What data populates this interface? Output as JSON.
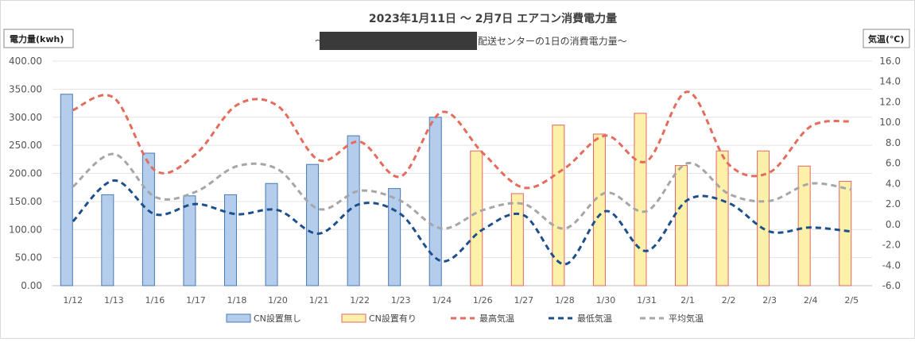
{
  "chart_data": {
    "type": "bar",
    "title": "2023年1月11日 ～ 2月7日 エアコン消費電力量",
    "subtitle_prefix": "～",
    "subtitle_suffix": "配送センターの1日の消費電力量～",
    "ylabel": "電力量(kwh)",
    "y2label": "気温(℃)",
    "ylim": [
      0,
      400
    ],
    "y2lim": [
      -6,
      16
    ],
    "y_ticks": [
      "0.00",
      "50.00",
      "100.00",
      "150.00",
      "200.00",
      "250.00",
      "300.00",
      "350.00",
      "400.00"
    ],
    "y2_ticks": [
      "-6.0",
      "-4.0",
      "-2.0",
      "0.0",
      "2.0",
      "4.0",
      "6.0",
      "8.0",
      "10.0",
      "12.0",
      "14.0",
      "16.0"
    ],
    "grid": true,
    "legend_position": "bottom",
    "categories": [
      "1/12",
      "1/13",
      "1/16",
      "1/17",
      "1/18",
      "1/20",
      "1/21",
      "1/22",
      "1/23",
      "1/24",
      "1/26",
      "1/27",
      "1/28",
      "1/30",
      "1/31",
      "2/1",
      "2/2",
      "2/3",
      "2/4",
      "2/5"
    ],
    "series": [
      {
        "name": "CN設置無し",
        "type": "bar",
        "axis": "left",
        "color": "#b4cdec",
        "stroke": "#4a78b4",
        "values": [
          341,
          162,
          236,
          160,
          162,
          182,
          216,
          267,
          173,
          300,
          null,
          null,
          null,
          null,
          null,
          null,
          null,
          null,
          null,
          null
        ]
      },
      {
        "name": "CN設置有り",
        "type": "bar",
        "axis": "left",
        "color": "#fdf0a8",
        "stroke": "#e06666",
        "values": [
          null,
          null,
          null,
          null,
          null,
          null,
          null,
          null,
          null,
          null,
          240,
          164,
          286,
          270,
          307,
          214,
          240,
          240,
          213,
          186
        ]
      },
      {
        "name": "最高気温",
        "type": "line",
        "axis": "right",
        "color": "#e56b5d",
        "dash": "dashed",
        "values": [
          11.2,
          12.4,
          5.3,
          6.9,
          11.7,
          11.6,
          6.3,
          8.1,
          4.7,
          11.0,
          7.0,
          3.6,
          5.5,
          8.7,
          6.2,
          13.0,
          5.9,
          5.1,
          9.6,
          10.1
        ]
      },
      {
        "name": "最低気温",
        "type": "line",
        "axis": "right",
        "color": "#1d4f8c",
        "dash": "dashed",
        "values": [
          0.3,
          4.3,
          1.0,
          2.0,
          1.0,
          1.4,
          -0.9,
          2.0,
          1.0,
          -3.6,
          -0.5,
          0.9,
          -3.9,
          1.3,
          -2.6,
          2.4,
          2.1,
          -0.7,
          -0.3,
          -0.7
        ]
      },
      {
        "name": "平均気温",
        "type": "line",
        "axis": "right",
        "color": "#a6a6a6",
        "dash": "dashed",
        "values": [
          3.7,
          6.9,
          2.7,
          3.2,
          5.7,
          5.4,
          1.5,
          3.3,
          2.3,
          -0.4,
          1.4,
          2.0,
          -0.4,
          3.1,
          1.3,
          6.0,
          3.0,
          2.3,
          4.0,
          3.4
        ]
      }
    ]
  }
}
